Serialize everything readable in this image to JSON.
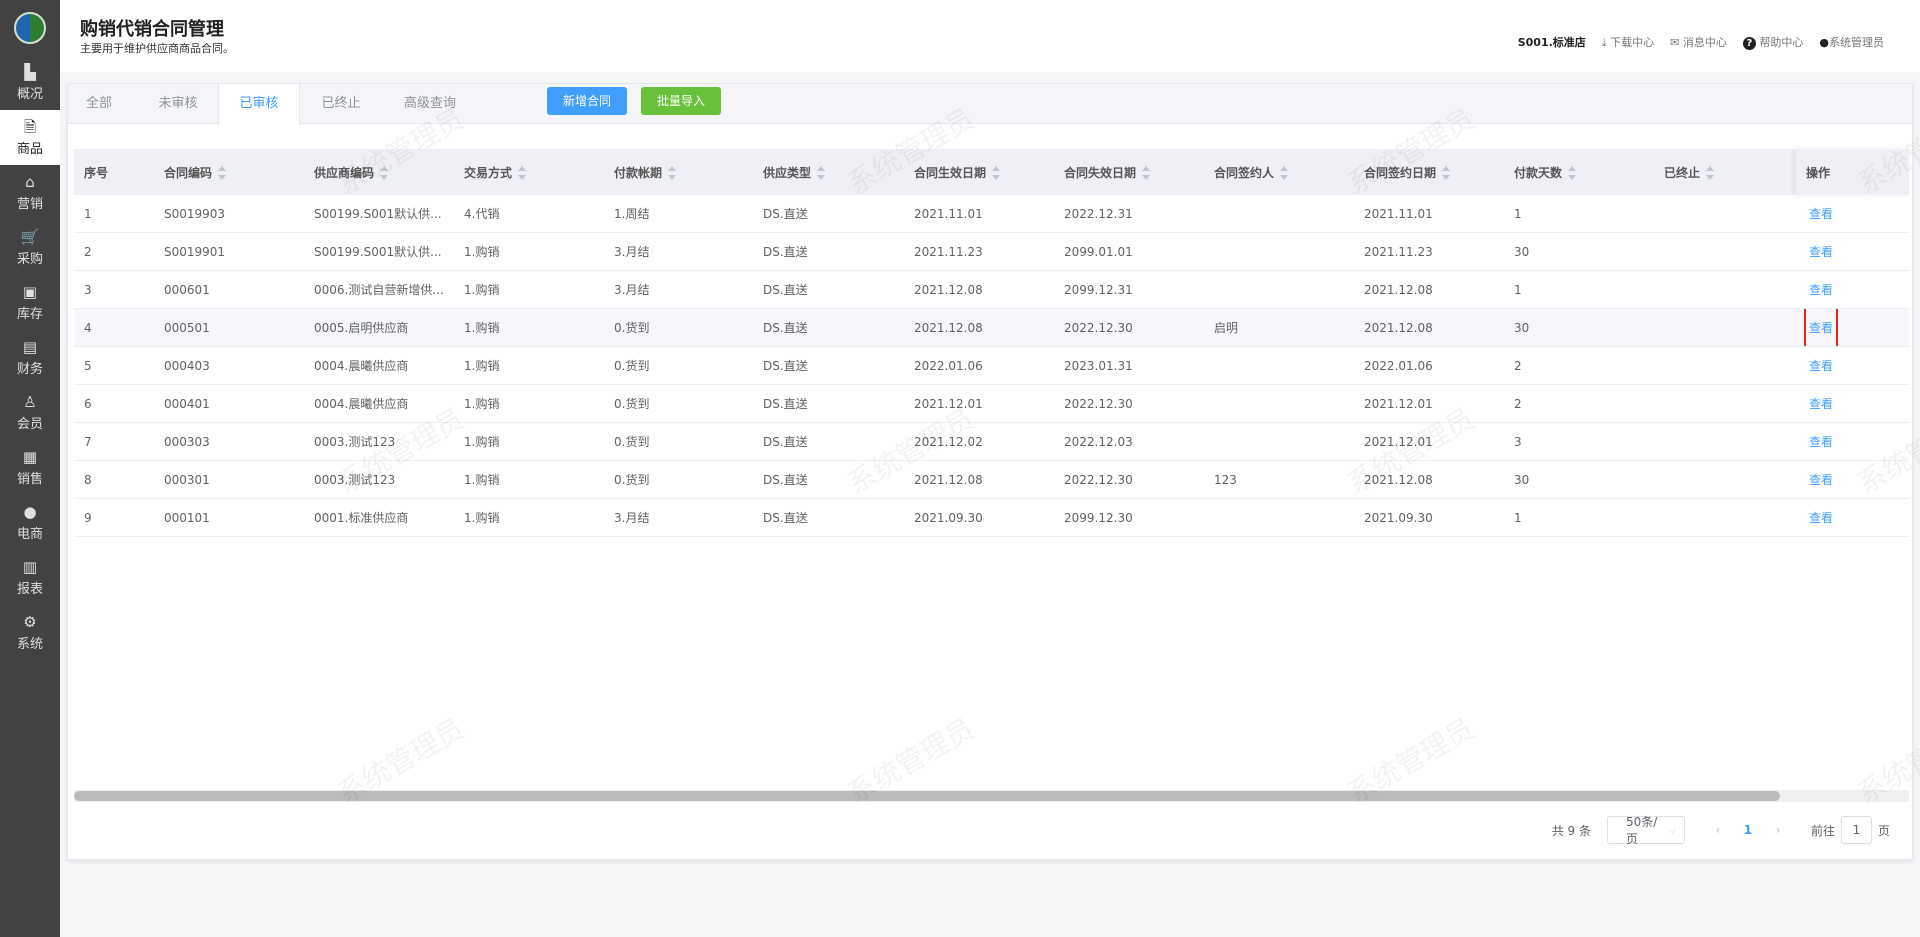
{
  "sidebar": {
    "items": [
      {
        "label": "概况",
        "icon": "building-icon",
        "glyph": "▙"
      },
      {
        "label": "商品",
        "icon": "document-icon",
        "glyph": "🗎",
        "active": true
      },
      {
        "label": "营销",
        "icon": "tag-icon",
        "glyph": "⌂"
      },
      {
        "label": "采购",
        "icon": "cart-icon",
        "glyph": "🛒"
      },
      {
        "label": "库存",
        "icon": "box-icon",
        "glyph": "▣"
      },
      {
        "label": "财务",
        "icon": "wallet-icon",
        "glyph": "▤"
      },
      {
        "label": "会员",
        "icon": "user-icon",
        "glyph": "♙"
      },
      {
        "label": "销售",
        "icon": "cash-register-icon",
        "glyph": "▦"
      },
      {
        "label": "电商",
        "icon": "person-icon",
        "glyph": "●"
      },
      {
        "label": "报表",
        "icon": "chart-board-icon",
        "glyph": "▥"
      },
      {
        "label": "系统",
        "icon": "gear-icon",
        "glyph": "⚙"
      }
    ]
  },
  "header": {
    "title": "购销代销合同管理",
    "subtitle": "主要用于维护供应商商品合同。",
    "store": "S001.标准店",
    "download": "下载中心",
    "messages": "消息中心",
    "help": "帮助中心",
    "user": "系统管理员"
  },
  "tabs": [
    {
      "label": "全部"
    },
    {
      "label": "未审核"
    },
    {
      "label": "已审核",
      "active": true
    },
    {
      "label": "已终止"
    },
    {
      "label": "高级查询"
    }
  ],
  "buttons": {
    "add": "新增合同",
    "import": "批量导入"
  },
  "colors": {
    "primary": "#409eff",
    "success": "#67c23a",
    "highlight": "#e8211b"
  },
  "table": {
    "columns": [
      "序号",
      "合同编码",
      "供应商编码",
      "交易方式",
      "付款帐期",
      "供应类型",
      "合同生效日期",
      "合同失效日期",
      "合同签约人",
      "合同签约日期",
      "付款天数",
      "已终止",
      "操作"
    ],
    "action_label": "查看",
    "rows": [
      [
        "1",
        "S0019903",
        "S00199.S001默认供...",
        "4.代销",
        "1.周结",
        "DS.直送",
        "2021.11.01",
        "2022.12.31",
        "",
        "2021.11.01",
        "1",
        ""
      ],
      [
        "2",
        "S0019901",
        "S00199.S001默认供...",
        "1.购销",
        "3.月结",
        "DS.直送",
        "2021.11.23",
        "2099.01.01",
        "",
        "2021.11.23",
        "30",
        ""
      ],
      [
        "3",
        "000601",
        "0006.测试自营新增供...",
        "1.购销",
        "3.月结",
        "DS.直送",
        "2021.12.08",
        "2099.12.31",
        "",
        "2021.12.08",
        "1",
        ""
      ],
      [
        "4",
        "000501",
        "0005.启明供应商",
        "1.购销",
        "0.货到",
        "DS.直送",
        "2021.12.08",
        "2022.12.30",
        "启明",
        "2021.12.08",
        "30",
        ""
      ],
      [
        "5",
        "000403",
        "0004.晨曦供应商",
        "1.购销",
        "0.货到",
        "DS.直送",
        "2022.01.06",
        "2023.01.31",
        "",
        "2022.01.06",
        "2",
        ""
      ],
      [
        "6",
        "000401",
        "0004.晨曦供应商",
        "1.购销",
        "0.货到",
        "DS.直送",
        "2021.12.01",
        "2022.12.30",
        "",
        "2021.12.01",
        "2",
        ""
      ],
      [
        "7",
        "000303",
        "0003.测试123",
        "1.购销",
        "0.货到",
        "DS.直送",
        "2021.12.02",
        "2022.12.03",
        "",
        "2021.12.01",
        "3",
        ""
      ],
      [
        "8",
        "000301",
        "0003.测试123",
        "1.购销",
        "0.货到",
        "DS.直送",
        "2021.12.08",
        "2022.12.30",
        "123",
        "2021.12.08",
        "30",
        ""
      ],
      [
        "9",
        "000101",
        "0001.标准供应商",
        "1.购销",
        "3.月结",
        "DS.直送",
        "2021.09.30",
        "2099.12.30",
        "",
        "2021.09.30",
        "1",
        ""
      ]
    ]
  },
  "pagination": {
    "total": "共 9 条",
    "page_size": "50条/页",
    "current": "1",
    "goto_label": "前往",
    "goto_value": "1",
    "page_suffix": "页"
  },
  "watermark": "系统管理员"
}
